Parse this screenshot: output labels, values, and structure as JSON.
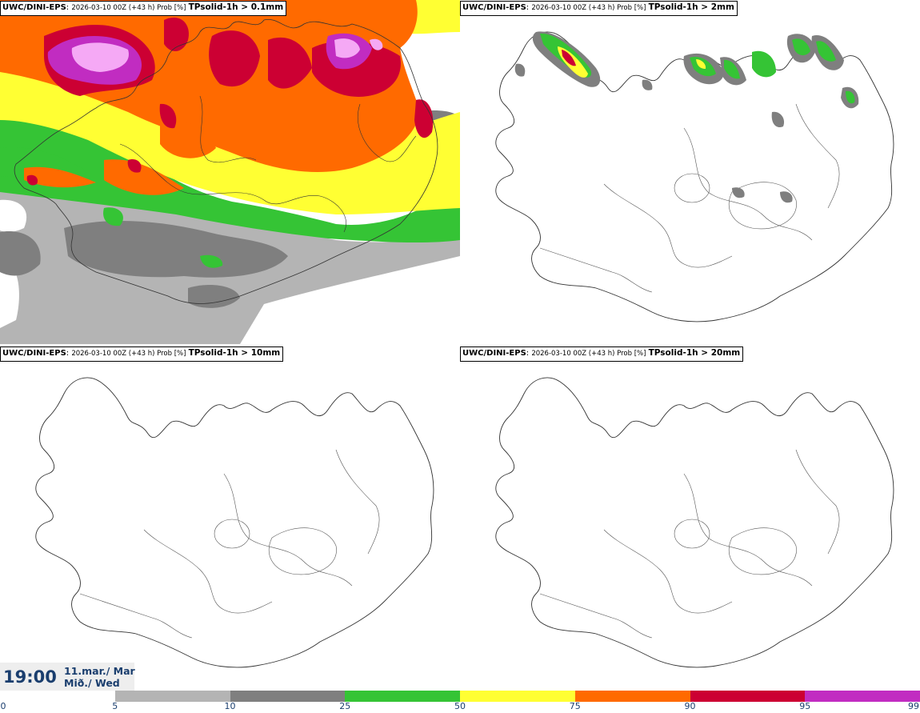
{
  "panels": [
    {
      "model": "UWC/DINI-EPS",
      "meta": "2026-03-10 00Z (+43 h) Prob [%]",
      "param": "TPsolid-1h > 0.1mm"
    },
    {
      "model": "UWC/DINI-EPS",
      "meta": "2026-03-10 00Z (+43 h) Prob [%]",
      "param": "TPsolid-1h > 2mm"
    },
    {
      "model": "UWC/DINI-EPS",
      "meta": "2026-03-10 00Z (+43 h) Prob [%]",
      "param": "TPsolid-1h > 10mm"
    },
    {
      "model": "UWC/DINI-EPS",
      "meta": "2026-03-10 00Z (+43 h) Prob [%]",
      "param": "TPsolid-1h > 20mm"
    }
  ],
  "valid_time": {
    "clock": "19:00",
    "date_line": "11.mar./ Mar",
    "day_line": "Mið./ Wed"
  },
  "colorbar": {
    "ticks": [
      "0",
      "5",
      "10",
      "25",
      "50",
      "75",
      "90",
      "95",
      "99"
    ],
    "colors": [
      "#ffffff",
      "#b4b4b4",
      "#7f7f7f",
      "#35c435",
      "#ffff33",
      "#ff6a00",
      "#cc0033",
      "#c12cc1",
      "#f5a9f5"
    ]
  },
  "colors": {
    "grey_light": "#b4b4b4",
    "grey_dark": "#7f7f7f",
    "green": "#35c435",
    "yellow": "#ffff33",
    "orange": "#ff6a00",
    "red": "#cc0033",
    "purple": "#c12cc1",
    "pink": "#f5a9f5",
    "coast": "#333333"
  }
}
